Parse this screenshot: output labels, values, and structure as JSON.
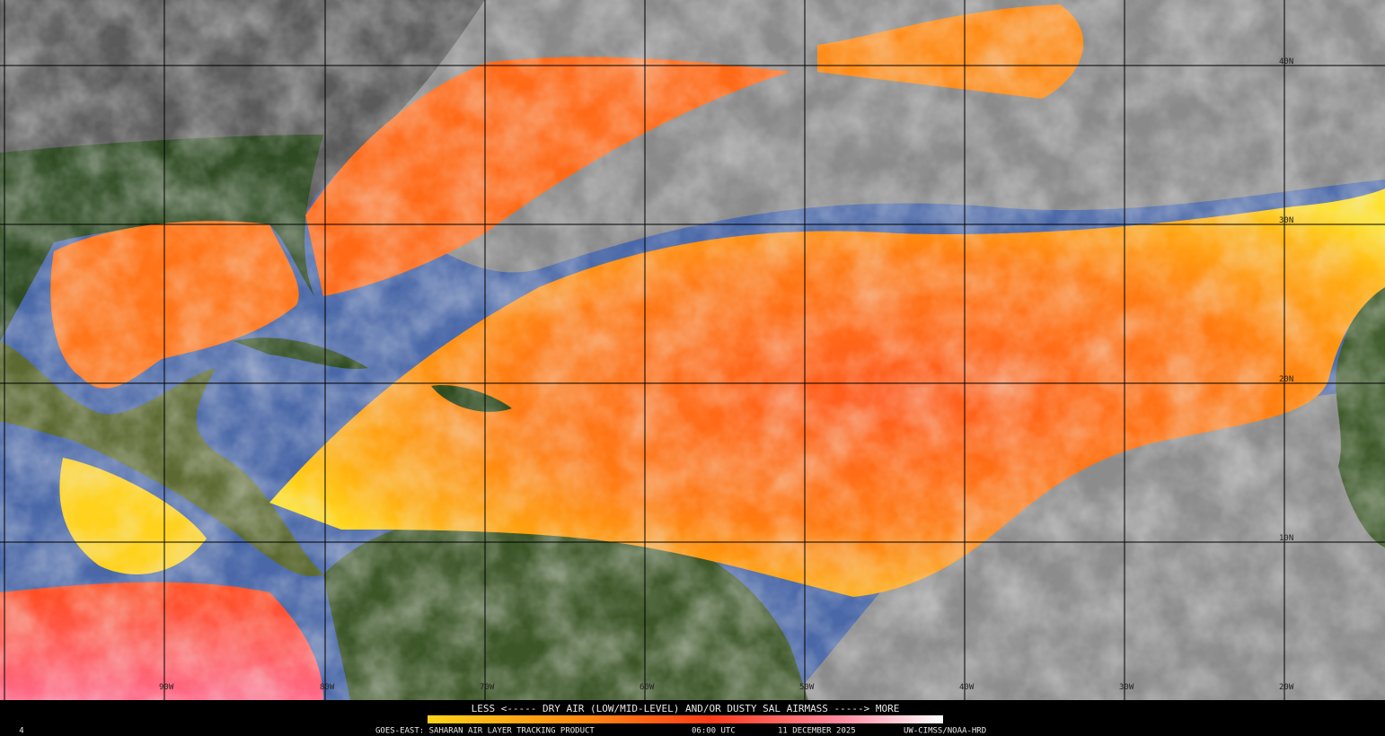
{
  "header": {
    "legend_caption": "LESS <----- DRY AIR (LOW/MID-LEVEL) AND/OR DUSTY SAL AIRMASS -----> MORE",
    "product": "GOES-EAST: SAHARAN AIR LAYER TRACKING PRODUCT",
    "time": "06:00 UTC",
    "date": "11 DECEMBER 2025",
    "credit": "UW-CIMSS/NOAA-HRD",
    "corner_mark": "4"
  },
  "map": {
    "lat_labels": [
      "40N",
      "30N",
      "20N",
      "10N"
    ],
    "lon_labels": [
      "90W",
      "80W",
      "70W",
      "60W",
      "50W",
      "40W",
      "30W",
      "20W"
    ]
  }
}
